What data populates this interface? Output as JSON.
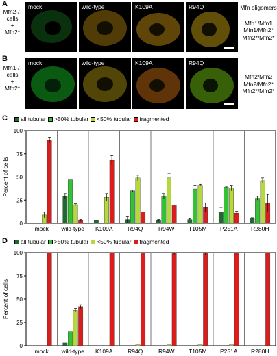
{
  "panel_a": {
    "letter": "A",
    "cell_label": [
      "Mfn2-/-",
      "cells",
      "+",
      "Mfn2*"
    ],
    "tiles": [
      "mock",
      "wild-type",
      "K109A",
      "R94Q"
    ],
    "oligomers_title": "Mfn oligomers",
    "oligomers": [
      "Mfn1/Mfn1",
      "Mfn1/Mfn2*",
      "Mfn2*/Mfn2*"
    ]
  },
  "panel_b": {
    "letter": "B",
    "cell_label": [
      "Mfn1-/-",
      "cells",
      "+",
      "Mfn2*"
    ],
    "tiles": [
      "mock",
      "wild-type",
      "K109A",
      "R94Q"
    ],
    "oligomers": [
      "Mfn2/Mfn2",
      "Mfn2/Mfn2*",
      "Mfn2*/Mfn2*"
    ]
  },
  "legend": {
    "items": [
      {
        "label": "all tubular",
        "color": "#1f6b2e"
      },
      {
        "label": ">50% tubular",
        "color": "#33c233"
      },
      {
        "label": "<50% tubular",
        "color": "#b5d93a"
      },
      {
        "label": "fragmented",
        "color": "#dd1c1c"
      }
    ]
  },
  "chart_data": [
    {
      "panel": "C",
      "type": "bar",
      "ylabel": "Percent of cells",
      "ylim": [
        0,
        100
      ],
      "yticks": [
        0,
        25,
        50,
        75,
        100
      ],
      "categories": [
        "mock",
        "wild-type",
        "K109A",
        "R94Q",
        "R94W",
        "T105M",
        "P251A",
        "R280H"
      ],
      "series": [
        {
          "name": "all tubular",
          "color": "#1f6b2e",
          "values": [
            0,
            29,
            3,
            4,
            3,
            4,
            12,
            5
          ],
          "errors": [
            0,
            3,
            0,
            3,
            1,
            1,
            5,
            1
          ]
        },
        {
          "name": ">50% tubular",
          "color": "#33c233",
          "values": [
            0,
            47,
            0,
            35,
            29,
            37,
            39,
            27
          ],
          "errors": [
            0,
            0,
            0,
            1,
            3,
            4,
            1,
            2
          ]
        },
        {
          "name": "<50% tubular",
          "color": "#b5d93a",
          "values": [
            9,
            20,
            28,
            49,
            49,
            41,
            38,
            46
          ],
          "errors": [
            3,
            1,
            4,
            3,
            5,
            1,
            3,
            3
          ]
        },
        {
          "name": "fragmented",
          "color": "#dd1c1c",
          "values": [
            90,
            3,
            68,
            12,
            19,
            17,
            11,
            22
          ],
          "errors": [
            3,
            1,
            5,
            0,
            0,
            5,
            2,
            9
          ]
        }
      ]
    },
    {
      "panel": "D",
      "type": "bar",
      "ylabel": "Percent of cells",
      "ylim": [
        0,
        100
      ],
      "yticks": [
        0,
        25,
        50,
        75,
        100
      ],
      "categories": [
        "mock",
        "wild-type",
        "K109A",
        "R94Q",
        "R94W",
        "T105M",
        "P251A",
        "R280H"
      ],
      "series": [
        {
          "name": "all tubular",
          "color": "#1f6b2e",
          "values": [
            0,
            3,
            0,
            0,
            0,
            0,
            0,
            0
          ],
          "errors": [
            0,
            0,
            0,
            0,
            0,
            0,
            0,
            0
          ]
        },
        {
          "name": ">50% tubular",
          "color": "#33c233",
          "values": [
            0,
            15,
            0,
            0,
            0,
            0,
            0,
            0
          ],
          "errors": [
            0,
            0,
            0,
            0,
            0,
            0,
            0,
            0
          ]
        },
        {
          "name": "<50% tubular",
          "color": "#b5d93a",
          "values": [
            0,
            38,
            0,
            1,
            1,
            1,
            1,
            0
          ],
          "errors": [
            0,
            2,
            0,
            0,
            0,
            0,
            0,
            0
          ]
        },
        {
          "name": "fragmented",
          "color": "#dd1c1c",
          "values": [
            100,
            42,
            100,
            99,
            99,
            99,
            99,
            100
          ],
          "errors": [
            0,
            2,
            0,
            1,
            1,
            1,
            1,
            0
          ]
        }
      ]
    }
  ]
}
